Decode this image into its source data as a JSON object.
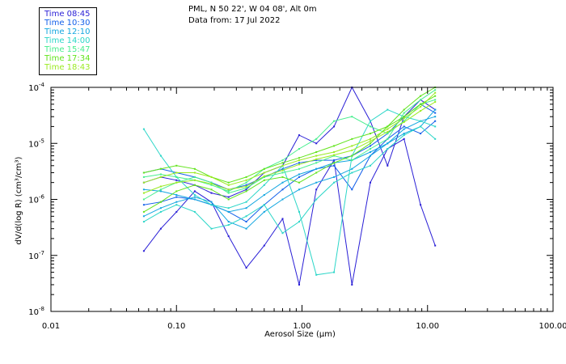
{
  "header": {
    "location": "PML, N 50 22', W 04 08', Alt 0m",
    "date_line": "Data from: 17 Jul 2022"
  },
  "chart_data": {
    "type": "line",
    "title": "PML, N 50 22', W 04 08', Alt 0m",
    "subtitle": "Data from: 17 Jul 2022",
    "xlabel": "Aerosol Size (µm)",
    "ylabel": "dV/d(log R) (cm³/cm³)",
    "x_scale": "log",
    "y_scale": "log",
    "xlim": [
      0.01,
      100
    ],
    "ylim": [
      1e-08,
      0.0001
    ],
    "x_ticks": [
      0.01,
      0.1,
      1,
      10,
      100
    ],
    "x_tick_labels": [
      "0.01",
      "0.10",
      "1.00",
      "10.00",
      "100.00"
    ],
    "y_ticks": [
      1e-08,
      1e-07,
      1e-06,
      1e-05,
      0.0001
    ],
    "y_tick_mantissa": [
      "10",
      "10",
      "10",
      "10",
      "10"
    ],
    "y_tick_exponents": [
      "-8",
      "-7",
      "-6",
      "-5",
      "-4"
    ],
    "x": [
      0.055,
      0.075,
      0.1,
      0.14,
      0.19,
      0.26,
      0.36,
      0.5,
      0.7,
      0.95,
      1.3,
      1.8,
      2.5,
      3.5,
      4.8,
      6.5,
      8.8,
      11.5
    ],
    "series": [
      {
        "name": "Time 08:45",
        "color": "#2a1fd6",
        "values": [
          1.2e-07,
          3e-07,
          6e-07,
          1.4e-06,
          9e-07,
          2.2e-07,
          6e-08,
          1.5e-07,
          4.5e-07,
          3e-08,
          1.5e-06,
          5e-06,
          3e-08,
          2e-06,
          8e-06,
          1.2e-05,
          8e-07,
          1.5e-07
        ]
      },
      {
        "name": "Time 08:45",
        "color": "#2a1fd6",
        "values": [
          2e-06,
          2.5e-06,
          2.2e-06,
          1.8e-06,
          1.3e-06,
          1.1e-06,
          1.5e-06,
          3e-06,
          4e-06,
          1.4e-05,
          1e-05,
          2e-05,
          0.0001,
          2.5e-05,
          4e-06,
          3e-05,
          6e-05,
          4e-05
        ]
      },
      {
        "name": "Time 10:30",
        "color": "#1460ea",
        "values": [
          8e-07,
          9e-07,
          1.1e-06,
          1e-06,
          8e-07,
          6e-07,
          4e-07,
          8e-07,
          1.5e-06,
          2.5e-06,
          3.5e-06,
          4e-06,
          1.5e-06,
          6e-06,
          1.2e-05,
          2e-05,
          1.5e-05,
          2.5e-05
        ]
      },
      {
        "name": "Time 10:30",
        "color": "#1460ea",
        "values": [
          3e-06,
          3.5e-06,
          3e-06,
          2.5e-06,
          2e-06,
          1.5e-06,
          1.8e-06,
          2.5e-06,
          3.5e-06,
          4.5e-06,
          5e-06,
          5e-06,
          6e-06,
          9e-06,
          1.5e-05,
          3e-05,
          5e-05,
          3.5e-05
        ]
      },
      {
        "name": "Time 12:10",
        "color": "#12a6e0",
        "values": [
          1.5e-06,
          1.4e-06,
          1.2e-06,
          1e-06,
          8e-07,
          6e-07,
          7e-07,
          1.2e-06,
          2e-06,
          2.8e-06,
          3.5e-06,
          4.5e-06,
          5e-06,
          7e-06,
          1e-05,
          1.8e-05,
          2.5e-05,
          3e-05
        ]
      },
      {
        "name": "Time 12:10",
        "color": "#12a6e0",
        "values": [
          5e-07,
          7e-07,
          9e-07,
          1.1e-06,
          9e-07,
          4e-07,
          3e-07,
          6e-07,
          1e-06,
          1.5e-06,
          2e-06,
          2.5e-06,
          3.5e-06,
          6e-06,
          1e-05,
          1.5e-05,
          2e-05,
          4e-05
        ]
      },
      {
        "name": "Time 14:00",
        "color": "#2cd6c8",
        "values": [
          1.8e-05,
          6e-06,
          2.5e-06,
          1.2e-06,
          8e-07,
          7e-07,
          9e-07,
          1.8e-06,
          4e-06,
          6e-07,
          4.5e-08,
          5e-08,
          6e-06,
          2.5e-05,
          4e-05,
          3e-05,
          2.5e-05,
          2e-05
        ]
      },
      {
        "name": "Time 14:00",
        "color": "#2cd6c8",
        "values": [
          4e-07,
          6e-07,
          8e-07,
          6e-07,
          3e-07,
          3.5e-07,
          5e-07,
          8e-07,
          2.5e-07,
          4e-07,
          1e-06,
          2e-06,
          3e-06,
          4e-06,
          8e-06,
          1.4e-05,
          2e-05,
          1.2e-05
        ]
      },
      {
        "name": "Time 15:47",
        "color": "#47ee8e",
        "values": [
          2.5e-06,
          2.8e-06,
          2.5e-06,
          2.2e-06,
          1.8e-06,
          1.4e-06,
          2e-06,
          3.5e-06,
          5e-06,
          8e-06,
          1.2e-05,
          2.5e-05,
          3e-05,
          2e-05,
          1.5e-05,
          2.5e-05,
          5e-05,
          6e-05
        ]
      },
      {
        "name": "Time 15:47",
        "color": "#47ee8e",
        "values": [
          1e-06,
          1.5e-06,
          2e-06,
          2.5e-06,
          2e-06,
          1.3e-06,
          1.6e-06,
          2.5e-06,
          3e-06,
          3.5e-06,
          4.5e-06,
          6e-06,
          5e-06,
          8e-06,
          1.2e-05,
          3.5e-05,
          6e-05,
          9e-05
        ]
      },
      {
        "name": "Time 17:34",
        "color": "#62e41c",
        "values": [
          3e-06,
          3.5e-06,
          4e-06,
          3.5e-06,
          2.5e-06,
          2e-06,
          2.5e-06,
          3.5e-06,
          4.5e-06,
          5.5e-06,
          7e-06,
          9e-06,
          1.2e-05,
          1.5e-05,
          2e-05,
          3e-05,
          5e-05,
          7e-05
        ]
      },
      {
        "name": "Time 17:34",
        "color": "#62e41c",
        "values": [
          6e-07,
          9e-07,
          1.4e-06,
          1.8e-06,
          1.5e-06,
          1e-06,
          1.4e-06,
          2.2e-06,
          2.5e-06,
          2e-06,
          3e-06,
          4.5e-06,
          6e-06,
          1e-05,
          2e-05,
          4e-05,
          7e-05,
          0.0001
        ]
      },
      {
        "name": "Time 18:43",
        "color": "#9bea22",
        "values": [
          2e-06,
          2.5e-06,
          3e-06,
          3e-06,
          2.5e-06,
          1.8e-06,
          2.2e-06,
          3e-06,
          4e-06,
          5e-06,
          6e-06,
          7e-06,
          9e-06,
          1.2e-05,
          1.8e-05,
          2.8e-05,
          4.5e-05,
          8e-05
        ]
      },
      {
        "name": "Time 18:43",
        "color": "#9bea22",
        "values": [
          1.3e-06,
          1.7e-06,
          2e-06,
          2.2e-06,
          1.9e-06,
          1.5e-06,
          1.7e-06,
          2.6e-06,
          3.3e-06,
          4.2e-06,
          5.2e-06,
          6.2e-06,
          7.5e-06,
          1.1e-05,
          1.6e-05,
          2.4e-05,
          3.8e-05,
          5.5e-05
        ]
      }
    ]
  },
  "legend": [
    {
      "label": "Time 08:45",
      "color": "#2a1fd6"
    },
    {
      "label": "Time 10:30",
      "color": "#1460ea"
    },
    {
      "label": "Time 12:10",
      "color": "#12a6e0"
    },
    {
      "label": "Time 14:00",
      "color": "#2cd6c8"
    },
    {
      "label": "Time 15:47",
      "color": "#47ee8e"
    },
    {
      "label": "Time 17:34",
      "color": "#62e41c"
    },
    {
      "label": "Time 18:43",
      "color": "#9bea22"
    }
  ]
}
